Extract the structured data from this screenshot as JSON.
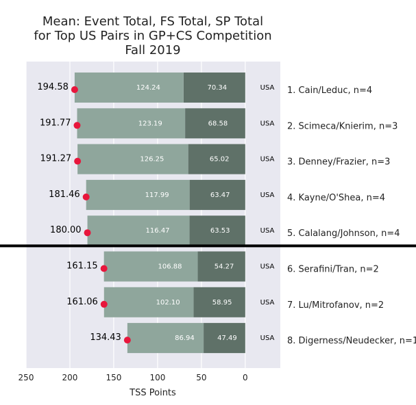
{
  "colors": {
    "plot_bg": "#e8e8f0",
    "grid": "#ffffff",
    "fs_bar": "#8fa69c",
    "sp_bar": "#5f7168",
    "total_dot": "#e8163c",
    "divider": "#000000"
  },
  "chart_data": {
    "type": "bar",
    "orientation": "horizontal",
    "stacked": true,
    "title_lines": [
      "Mean: Event Total, FS Total, SP Total",
      "for Top US Pairs in GP+CS Competition",
      "Fall 2019"
    ],
    "xlabel": "TSS Points",
    "ylabel": "",
    "xlim": [
      250,
      -40
    ],
    "x_inverted": true,
    "xticks": [
      250,
      200,
      150,
      100,
      50,
      0
    ],
    "grid": true,
    "categories": [
      "1. Cain/Leduc, n=4",
      "2. Scimeca/Knierim, n=3",
      "3. Denney/Frazier, n=3",
      "4. Kayne/O'Shea, n=4",
      "5. Calalang/Johnson, n=4",
      "6. Serafini/Tran, n=2",
      "7. Lu/Mitrofanov, n=2",
      "8. Digerness/Neudecker, n=1"
    ],
    "countries": [
      "USA",
      "USA",
      "USA",
      "USA",
      "USA",
      "USA",
      "USA",
      "USA"
    ],
    "event_total": [
      "194.58",
      "191.77",
      "191.27",
      "181.46",
      "180.00",
      "161.15",
      "161.06",
      "134.43"
    ],
    "series": [
      {
        "key": "sp",
        "values": [
          "70.34",
          "68.58",
          "65.02",
          "63.47",
          "63.53",
          "54.27",
          "58.95",
          "47.49"
        ]
      },
      {
        "key": "fs",
        "values": [
          "124.24",
          "123.19",
          "126.25",
          "117.99",
          "116.47",
          "106.88",
          "102.10",
          "86.94"
        ]
      }
    ],
    "divider_after_index": 4
  }
}
